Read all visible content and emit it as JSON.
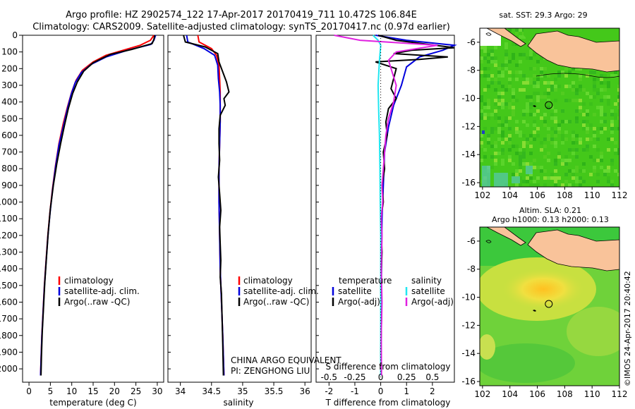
{
  "header": {
    "line1": "Argo profile: HZ 2902574_122 17-Apr-2017 20170419_711 10.472S 106.84E",
    "line2": "Climatology: CARS2009. Satellite-adjusted climatology: synTS_20170417.nc (0.97d earlier)"
  },
  "colors": {
    "climatology": "#ff0000",
    "satellite": "#0000dd",
    "argo": "#000000",
    "salinity_satellite": "#22e6f0",
    "salinity_argo": "#e020e0",
    "land": "#f9c39a",
    "sst_field": "#44c81a",
    "sla_field": "#6fd23a"
  },
  "chart_data": [
    {
      "type": "line",
      "title": "",
      "xlabel": "temperature (deg C)",
      "ylabel": "",
      "xlim": [
        -1.5,
        31.5
      ],
      "ylim": [
        2080,
        0
      ],
      "y_inverted": true,
      "xticks": [
        0,
        5,
        10,
        15,
        20,
        25,
        30
      ],
      "yticks": [
        0,
        100,
        200,
        300,
        400,
        500,
        600,
        700,
        800,
        900,
        1000,
        1100,
        1200,
        1300,
        1400,
        1500,
        1600,
        1700,
        1800,
        1900,
        2000
      ],
      "legend": [
        "climatology",
        "satellite-adj. clim.",
        "Argo(..raw -QC)"
      ],
      "series": [
        {
          "name": "climatology",
          "color": "#ff0000",
          "points": [
            [
              29.2,
              0
            ],
            [
              28.4,
              30
            ],
            [
              26,
              60
            ],
            [
              22,
              90
            ],
            [
              18,
              120
            ],
            [
              15,
              160
            ],
            [
              12.5,
              210
            ],
            [
              11,
              270
            ],
            [
              10,
              340
            ],
            [
              9,
              430
            ],
            [
              8,
              530
            ],
            [
              7,
              650
            ],
            [
              6.2,
              780
            ],
            [
              5.5,
              920
            ],
            [
              4.9,
              1060
            ],
            [
              4.4,
              1200
            ],
            [
              4,
              1350
            ],
            [
              3.6,
              1500
            ],
            [
              3.3,
              1650
            ],
            [
              3,
              1800
            ],
            [
              2.8,
              1950
            ],
            [
              2.7,
              2040
            ]
          ]
        },
        {
          "name": "satellite-adj. clim.",
          "color": "#0000dd",
          "points": [
            [
              29.6,
              0
            ],
            [
              29.2,
              30
            ],
            [
              28.5,
              55
            ],
            [
              23,
              90
            ],
            [
              18,
              130
            ],
            [
              14.5,
              175
            ],
            [
              12.2,
              225
            ],
            [
              10.8,
              285
            ],
            [
              9.8,
              360
            ],
            [
              8.9,
              450
            ],
            [
              8,
              550
            ],
            [
              7,
              660
            ],
            [
              6.2,
              790
            ],
            [
              5.5,
              930
            ],
            [
              4.9,
              1070
            ],
            [
              4.4,
              1210
            ],
            [
              4,
              1360
            ],
            [
              3.6,
              1510
            ],
            [
              3.3,
              1660
            ],
            [
              3,
              1810
            ],
            [
              2.8,
              1960
            ],
            [
              2.7,
              2040
            ]
          ]
        },
        {
          "name": "Argo(..raw -QC)",
          "color": "#000000",
          "points": [
            [
              29.4,
              0
            ],
            [
              29.2,
              25
            ],
            [
              28.8,
              50
            ],
            [
              24,
              85
            ],
            [
              19,
              115
            ],
            [
              15,
              165
            ],
            [
              12.8,
              215
            ],
            [
              11.3,
              280
            ],
            [
              10.2,
              350
            ],
            [
              9.2,
              440
            ],
            [
              8.3,
              540
            ],
            [
              7.4,
              650
            ],
            [
              6.5,
              770
            ],
            [
              5.7,
              900
            ],
            [
              5,
              1040
            ],
            [
              4.5,
              1180
            ],
            [
              4.1,
              1330
            ],
            [
              3.7,
              1480
            ],
            [
              3.4,
              1630
            ],
            [
              3.1,
              1780
            ],
            [
              2.9,
              1930
            ],
            [
              2.8,
              2040
            ]
          ]
        }
      ]
    },
    {
      "type": "line",
      "title": "",
      "xlabel": "salinity",
      "ylabel": "",
      "xlim": [
        33.8,
        36.1
      ],
      "ylim": [
        2080,
        0
      ],
      "y_inverted": true,
      "xticks": [
        34,
        34.5,
        35,
        35.5,
        36
      ],
      "legend": [
        "climatology",
        "satellite-adj. clim.",
        "Argo(..raw -QC)"
      ],
      "annotations": [
        "CHINA ARGO EQUIVALENT",
        "PI: ZENGHONG LIU"
      ],
      "series": [
        {
          "name": "climatology",
          "color": "#ff0000",
          "points": [
            [
              34.28,
              0
            ],
            [
              34.3,
              40
            ],
            [
              34.5,
              80
            ],
            [
              34.58,
              120
            ],
            [
              34.62,
              180
            ],
            [
              34.63,
              260
            ],
            [
              34.64,
              340
            ],
            [
              34.64,
              420
            ],
            [
              34.64,
              520
            ],
            [
              34.63,
              650
            ],
            [
              34.62,
              800
            ],
            [
              34.62,
              1000
            ],
            [
              34.63,
              1200
            ],
            [
              34.64,
              1400
            ],
            [
              34.66,
              1600
            ],
            [
              34.68,
              1800
            ],
            [
              34.7,
              2040
            ]
          ]
        },
        {
          "name": "satellite-adj. clim.",
          "color": "#0000dd",
          "points": [
            [
              34.1,
              0
            ],
            [
              34.12,
              40
            ],
            [
              34.38,
              80
            ],
            [
              34.55,
              120
            ],
            [
              34.6,
              180
            ],
            [
              34.61,
              260
            ],
            [
              34.63,
              340
            ],
            [
              34.64,
              420
            ],
            [
              34.64,
              520
            ],
            [
              34.63,
              650
            ],
            [
              34.62,
              800
            ],
            [
              34.62,
              1000
            ],
            [
              34.63,
              1200
            ],
            [
              34.64,
              1400
            ],
            [
              34.66,
              1600
            ],
            [
              34.68,
              1800
            ],
            [
              34.7,
              2040
            ]
          ]
        },
        {
          "name": "Argo(..raw -QC)",
          "color": "#000000",
          "points": [
            [
              34.05,
              0
            ],
            [
              34.08,
              40
            ],
            [
              34.4,
              70
            ],
            [
              34.6,
              110
            ],
            [
              34.62,
              160
            ],
            [
              34.68,
              220
            ],
            [
              34.74,
              280
            ],
            [
              34.78,
              340
            ],
            [
              34.7,
              380
            ],
            [
              34.72,
              420
            ],
            [
              34.64,
              480
            ],
            [
              34.62,
              560
            ],
            [
              34.62,
              650
            ],
            [
              34.63,
              750
            ],
            [
              34.61,
              850
            ],
            [
              34.63,
              950
            ],
            [
              34.65,
              1050
            ],
            [
              34.63,
              1150
            ],
            [
              34.64,
              1250
            ],
            [
              34.65,
              1350
            ],
            [
              34.64,
              1450
            ],
            [
              34.66,
              1550
            ],
            [
              34.67,
              1700
            ],
            [
              34.68,
              1850
            ],
            [
              34.69,
              2040
            ]
          ]
        }
      ]
    },
    {
      "type": "line",
      "title": "",
      "xlabel": "T difference from climatology",
      "xlabel_top": "S difference from climatology",
      "xlim": [
        -2.5,
        2.85
      ],
      "ylim": [
        2080,
        0
      ],
      "y_inverted": true,
      "xticks_bottom": [
        -2,
        -1,
        0,
        1,
        2
      ],
      "xticks_top": [
        -0.5,
        -0.25,
        0,
        0.25,
        0.5
      ],
      "legend_left_title": "temperature",
      "legend_right_title": "salinity",
      "legend": [
        "satellite",
        "Argo(-adj)",
        "satellite",
        "Argo(-adj)"
      ],
      "series": [
        {
          "name": "satellite",
          "color": "#0000dd",
          "points": [
            [
              -0.2,
              0
            ],
            [
              1,
              30
            ],
            [
              2.85,
              60
            ],
            [
              2.4,
              90
            ],
            [
              1.5,
              130
            ],
            [
              1,
              190
            ],
            [
              0.8,
              300
            ],
            [
              0.5,
              420
            ],
            [
              0.3,
              550
            ],
            [
              0.15,
              700
            ],
            [
              0.1,
              900
            ],
            [
              0.05,
              1100
            ],
            [
              0.03,
              1400
            ],
            [
              0.02,
              1700
            ],
            [
              0.01,
              2040
            ]
          ]
        },
        {
          "name": "Argo(-adj)",
          "color": "#000000",
          "points": [
            [
              -0.1,
              0
            ],
            [
              0.6,
              30
            ],
            [
              2.85,
              75
            ],
            [
              1.2,
              90
            ],
            [
              0.5,
              110
            ],
            [
              2.6,
              130
            ],
            [
              1.5,
              145
            ],
            [
              -0.2,
              160
            ],
            [
              0.6,
              200
            ],
            [
              0.5,
              260
            ],
            [
              0.4,
              320
            ],
            [
              0.6,
              380
            ],
            [
              0.3,
              440
            ],
            [
              0.2,
              520
            ],
            [
              0.25,
              600
            ],
            [
              0.1,
              700
            ],
            [
              0.15,
              800
            ],
            [
              0.05,
              900
            ],
            [
              0.1,
              1000
            ],
            [
              0,
              1100
            ],
            [
              0.05,
              1300
            ],
            [
              0,
              1500
            ],
            [
              0.03,
              1700
            ],
            [
              0,
              1900
            ],
            [
              0.02,
              2040
            ]
          ]
        },
        {
          "name": "satellite",
          "color": "#22e6f0",
          "points": [
            [
              -0.3,
              0
            ],
            [
              -0.1,
              30
            ],
            [
              0,
              60
            ],
            [
              -0.05,
              150
            ],
            [
              -0.1,
              300
            ],
            [
              -0.08,
              450
            ],
            [
              -0.05,
              600
            ],
            [
              -0.03,
              800
            ],
            [
              -0.02,
              1000
            ],
            [
              0,
              1200
            ],
            [
              0,
              1500
            ],
            [
              0,
              1800
            ],
            [
              0,
              2040
            ]
          ]
        },
        {
          "name": "Argo(-adj)",
          "color": "#e020e0",
          "points": [
            [
              -1.8,
              0
            ],
            [
              -0.8,
              30
            ],
            [
              2.2,
              60
            ],
            [
              0.6,
              100
            ],
            [
              0.3,
              150
            ],
            [
              0.6,
              300
            ],
            [
              0.5,
              400
            ],
            [
              0.3,
              500
            ],
            [
              0.2,
              600
            ],
            [
              0.15,
              700
            ],
            [
              0.1,
              800
            ],
            [
              0.05,
              900
            ],
            [
              0.08,
              1000
            ],
            [
              0.02,
              1100
            ],
            [
              0.05,
              1200
            ],
            [
              0.02,
              1400
            ],
            [
              0.05,
              1600
            ],
            [
              0.02,
              1800
            ],
            [
              0.03,
              2040
            ]
          ]
        }
      ]
    },
    {
      "type": "heatmap",
      "title": "sat. SST: 29.3 Argo: 29",
      "xlim": [
        101.8,
        112
      ],
      "ylim": [
        -16.3,
        -5
      ],
      "xticks": [
        102,
        104,
        106,
        108,
        110,
        112
      ],
      "yticks": [
        -6,
        -8,
        -10,
        -12,
        -14,
        -16
      ],
      "marker": [
        106.84,
        -10.472
      ]
    },
    {
      "type": "heatmap",
      "title": "Altim. SLA: 0.21",
      "subtitle": "Argo h1000: 0.13 h2000: 0.13",
      "xlim": [
        101.8,
        112
      ],
      "ylim": [
        -16.3,
        -5
      ],
      "xticks": [
        102,
        104,
        106,
        108,
        110,
        112
      ],
      "yticks": [
        -6,
        -8,
        -10,
        -12,
        -14,
        -16
      ],
      "marker": [
        106.84,
        -10.472
      ]
    }
  ],
  "footer": {
    "credit": "©IMOS 24-Apr-2017 20:40:42"
  }
}
